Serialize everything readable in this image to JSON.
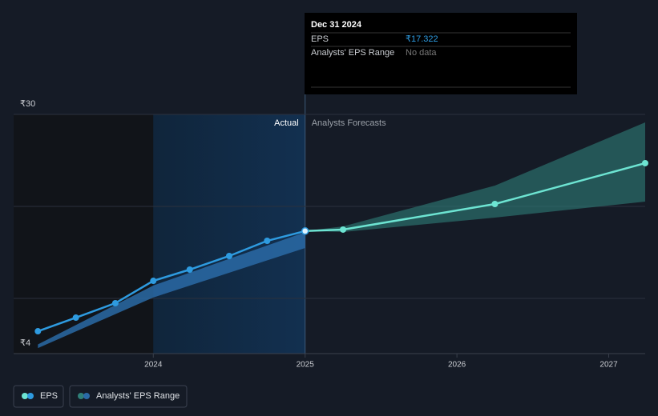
{
  "chart_data": {
    "type": "line",
    "xlim": [
      2023.08,
      2027.24
    ],
    "xticks": [
      2024,
      2025,
      2026,
      2027
    ],
    "ylim": [
      4,
      30
    ],
    "yticks": [
      {
        "value": 4,
        "label": "₹4"
      },
      {
        "value": 30,
        "label": "₹30"
      }
    ],
    "ygrid": [
      10,
      20,
      30
    ],
    "divider_x": 2025,
    "actual_label": "Actual",
    "forecast_label": "Analysts Forecasts",
    "series": [
      {
        "name": "EPS",
        "color": "#2e9be0",
        "forecast_color": "#6de4d2",
        "x": [
          2023.24,
          2023.49,
          2023.75,
          2024.0,
          2024.24,
          2024.5,
          2024.75,
          2025.0,
          2025.25,
          2026.25,
          2027.24
        ],
        "values": [
          6.43,
          7.91,
          9.48,
          11.91,
          13.13,
          14.61,
          16.26,
          17.322,
          17.48,
          20.26,
          24.7
        ]
      }
    ],
    "ranges": [
      {
        "name": "Analysts' EPS Range",
        "color": "#2a6aa6",
        "forecast_color": "#2f7f78",
        "x": [
          2023.24,
          2024.0,
          2025.0
        ],
        "low": [
          4.6,
          10.1,
          15.48
        ],
        "high": [
          5.0,
          11.4,
          17.2
        ]
      },
      {
        "color": "#2f7f78",
        "x": [
          2025.0,
          2025.25,
          2026.25,
          2027.24
        ],
        "low": [
          17.322,
          17.22,
          18.78,
          20.52
        ],
        "high": [
          17.322,
          17.83,
          22.26,
          29.13
        ]
      }
    ],
    "tooltip": {
      "date": "Dec 31 2024",
      "eps_label": "EPS",
      "eps_value": {
        "value": 17.322,
        "label": "₹17.322"
      },
      "range_label": "Analysts' EPS Range",
      "range_value": "No data"
    }
  }
}
